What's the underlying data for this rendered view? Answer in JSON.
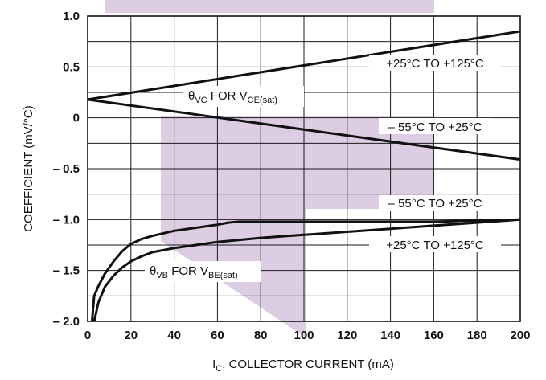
{
  "chart_data": {
    "type": "line",
    "title": "",
    "xlabel": "I",
    "xlabel_sub": "C",
    "xlabel_rest": ", COLLECTOR CURRENT (mA)",
    "ylabel": "COEFFICIENT (mV/°C)",
    "xlim": [
      0,
      200
    ],
    "ylim": [
      -2.0,
      1.0
    ],
    "grid": true,
    "x_ticks": [
      0,
      20,
      40,
      60,
      80,
      100,
      120,
      140,
      160,
      180,
      200
    ],
    "x_tick_labels": [
      "0",
      "20",
      "40",
      "60",
      "80",
      "100",
      "120",
      "140",
      "160",
      "180",
      "200"
    ],
    "y_ticks": [
      1.0,
      0.5,
      0,
      -0.5,
      -1.0,
      -1.5,
      -2.0
    ],
    "y_tick_labels": [
      "1.0",
      "0.5",
      "0",
      "– 0.5",
      "– 1.0",
      "– 1.5",
      "– 2.0"
    ],
    "series": [
      {
        "name": "+25°C TO +125°C",
        "group": "θVC FOR VCE(sat)",
        "x": [
          0,
          200
        ],
        "y": [
          0.18,
          0.85
        ]
      },
      {
        "name": "– 55°C TO +25°C",
        "group": "θVC FOR VCE(sat)",
        "x": [
          0,
          200
        ],
        "y": [
          0.18,
          -0.41
        ]
      },
      {
        "name": "– 55°C TO +25°C",
        "group": "θVB FOR VBE(sat)",
        "x": [
          2,
          3,
          5,
          8,
          12,
          16,
          20,
          25,
          30,
          40,
          50,
          60,
          65,
          70,
          80,
          100,
          120,
          140,
          160,
          180,
          200
        ],
        "y": [
          -2.0,
          -1.75,
          -1.65,
          -1.53,
          -1.41,
          -1.31,
          -1.24,
          -1.19,
          -1.16,
          -1.11,
          -1.08,
          -1.05,
          -1.03,
          -1.02,
          -1.02,
          -1.02,
          -1.02,
          -1.02,
          -1.02,
          -1.01,
          -1.0
        ]
      },
      {
        "name": "+25°C TO +125°C",
        "group": "θVB FOR VBE(sat)",
        "x": [
          3,
          5,
          8,
          12,
          16,
          20,
          25,
          30,
          40,
          50,
          60,
          80,
          100,
          120,
          140,
          160,
          180,
          200
        ],
        "y": [
          -2.0,
          -1.81,
          -1.66,
          -1.55,
          -1.47,
          -1.41,
          -1.36,
          -1.32,
          -1.28,
          -1.25,
          -1.22,
          -1.18,
          -1.15,
          -1.12,
          -1.09,
          -1.06,
          -1.03,
          -1.0
        ]
      }
    ],
    "annotations": [
      {
        "text": "+25°C TO +125°C",
        "x": 146,
        "y": 0.5
      },
      {
        "text": "θVC FOR VCE(sat)",
        "x": 55,
        "y": 0.2
      },
      {
        "text": "– 55°C TO +25°C",
        "x": 146,
        "y": -0.09
      },
      {
        "text": "– 55°C TO +25°C",
        "x": 146,
        "y": -0.85
      },
      {
        "text": "+25°C TO +125°C",
        "x": 146,
        "y": -1.25
      },
      {
        "text": "θVB FOR VBE(sat)",
        "x": 40,
        "y": -1.52
      }
    ]
  },
  "page_text": {
    "ann_top_upper": "+25°C TO +125°C",
    "ann_vc_theta": "θ",
    "ann_vc_sub": "VC",
    "ann_vc_mid": " FOR V",
    "ann_vc_sub2": "CE(sat)",
    "ann_top_lower": "– 55°C TO +25°C",
    "ann_bot_upper": "– 55°C TO +25°C",
    "ann_bot_lower": "+25°C TO +125°C",
    "ann_vb_theta": "θ",
    "ann_vb_sub": "VB",
    "ann_vb_mid": " FOR V",
    "ann_vb_sub2": "BE(sat)"
  },
  "colors": {
    "line": "#111111",
    "grid": "#1a1a1a",
    "watermark": "#dccde3"
  }
}
